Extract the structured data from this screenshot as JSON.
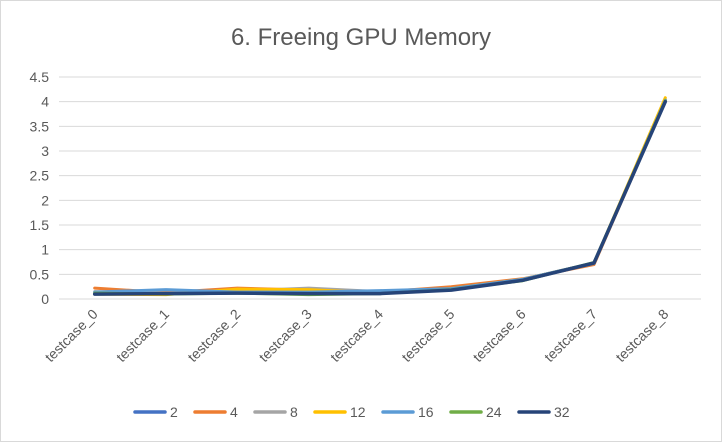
{
  "chart_data": {
    "type": "line",
    "title": "6. Freeing GPU Memory",
    "xlabel": "",
    "ylabel": "",
    "ylim": [
      0,
      4.5
    ],
    "yticks": [
      "0",
      "0.5",
      "1",
      "1.5",
      "2",
      "2.5",
      "3",
      "3.5",
      "4",
      "4.5"
    ],
    "grid": true,
    "legend_position": "bottom",
    "categories": [
      "testcase_0",
      "testcase_1",
      "testcase_2",
      "testcase_3",
      "testcase_4",
      "testcase_5",
      "testcase_6",
      "testcase_7",
      "testcase_8"
    ],
    "series": [
      {
        "name": "2",
        "color": "#4472C4",
        "values": [
          0.12,
          0.14,
          0.15,
          0.13,
          0.15,
          0.2,
          0.4,
          0.73,
          4.03
        ]
      },
      {
        "name": "4",
        "color": "#ED7D31",
        "values": [
          0.22,
          0.13,
          0.22,
          0.18,
          0.14,
          0.25,
          0.41,
          0.7,
          4.02
        ]
      },
      {
        "name": "8",
        "color": "#A5A5A5",
        "values": [
          0.15,
          0.12,
          0.16,
          0.22,
          0.15,
          0.2,
          0.4,
          0.72,
          4.05
        ]
      },
      {
        "name": "12",
        "color": "#FFC000",
        "values": [
          0.1,
          0.09,
          0.2,
          0.19,
          0.12,
          0.21,
          0.4,
          0.73,
          4.08
        ]
      },
      {
        "name": "16",
        "color": "#5B9BD5",
        "values": [
          0.14,
          0.19,
          0.14,
          0.14,
          0.17,
          0.21,
          0.4,
          0.73,
          4.03
        ]
      },
      {
        "name": "24",
        "color": "#70AD47",
        "values": [
          0.12,
          0.1,
          0.12,
          0.09,
          0.11,
          0.19,
          0.37,
          0.74,
          4.02
        ]
      },
      {
        "name": "32",
        "color": "#264478",
        "values": [
          0.1,
          0.11,
          0.12,
          0.11,
          0.11,
          0.18,
          0.38,
          0.73,
          4.0
        ]
      }
    ]
  }
}
